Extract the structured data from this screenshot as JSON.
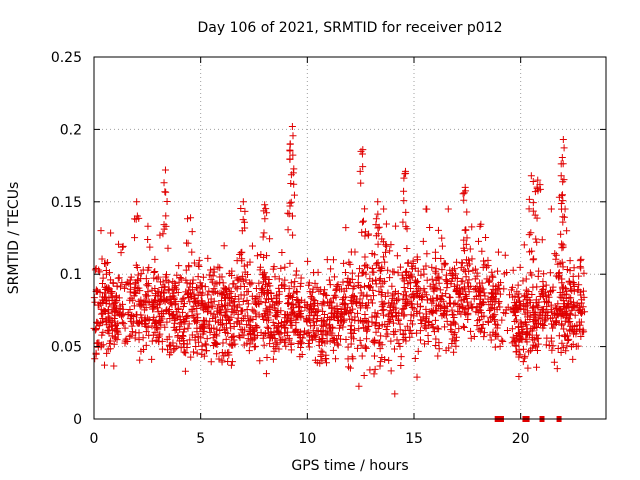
{
  "chart_data": {
    "type": "scatter",
    "title": "Day 106 of 2021, SRMTID for receiver p012",
    "xlabel": "GPS time / hours",
    "ylabel": "SRMTID / TECUs",
    "xlim": [
      0,
      24
    ],
    "ylim": [
      0,
      0.25
    ],
    "xticks": [
      0,
      5,
      10,
      15,
      20
    ],
    "xtick_labels": [
      "0",
      "5",
      "10",
      "15",
      "20"
    ],
    "yticks": [
      0,
      0.05,
      0.1,
      0.15,
      0.2,
      0.25
    ],
    "ytick_labels": [
      "0",
      "0.05",
      "0.1",
      "0.15",
      "0.2",
      "0.25"
    ],
    "grid": true,
    "marker": "+",
    "series_color": "#e00000",
    "density_profile": [
      {
        "x": 0.0,
        "mean": 0.07,
        "spread": 0.02
      },
      {
        "x": 2.0,
        "mean": 0.078,
        "spread": 0.022
      },
      {
        "x": 4.0,
        "mean": 0.075,
        "spread": 0.022
      },
      {
        "x": 6.0,
        "mean": 0.072,
        "spread": 0.024
      },
      {
        "x": 8.0,
        "mean": 0.075,
        "spread": 0.025
      },
      {
        "x": 10.0,
        "mean": 0.065,
        "spread": 0.02
      },
      {
        "x": 12.0,
        "mean": 0.075,
        "spread": 0.025
      },
      {
        "x": 14.0,
        "mean": 0.08,
        "spread": 0.03
      },
      {
        "x": 16.0,
        "mean": 0.082,
        "spread": 0.025
      },
      {
        "x": 18.0,
        "mean": 0.085,
        "spread": 0.02
      },
      {
        "x": 20.0,
        "mean": 0.065,
        "spread": 0.02
      },
      {
        "x": 22.0,
        "mean": 0.08,
        "spread": 0.025
      },
      {
        "x": 23.0,
        "mean": 0.075,
        "spread": 0.02
      }
    ],
    "peaks": [
      {
        "x": 2.0,
        "y": 0.15
      },
      {
        "x": 3.35,
        "y": 0.172
      },
      {
        "x": 7.0,
        "y": 0.15
      },
      {
        "x": 9.3,
        "y": 0.202
      },
      {
        "x": 9.2,
        "y": 0.19
      },
      {
        "x": 12.6,
        "y": 0.186
      },
      {
        "x": 14.6,
        "y": 0.171
      },
      {
        "x": 17.4,
        "y": 0.16
      },
      {
        "x": 20.5,
        "y": 0.168
      },
      {
        "x": 20.8,
        "y": 0.165
      },
      {
        "x": 22.0,
        "y": 0.193
      },
      {
        "x": 21.9,
        "y": 0.168
      },
      {
        "x": 8.0,
        "y": 0.148
      },
      {
        "x": 13.3,
        "y": 0.15
      }
    ],
    "gap_markers_x": [
      18.9,
      19.1,
      20.2,
      20.3,
      21.0,
      21.8
    ]
  }
}
